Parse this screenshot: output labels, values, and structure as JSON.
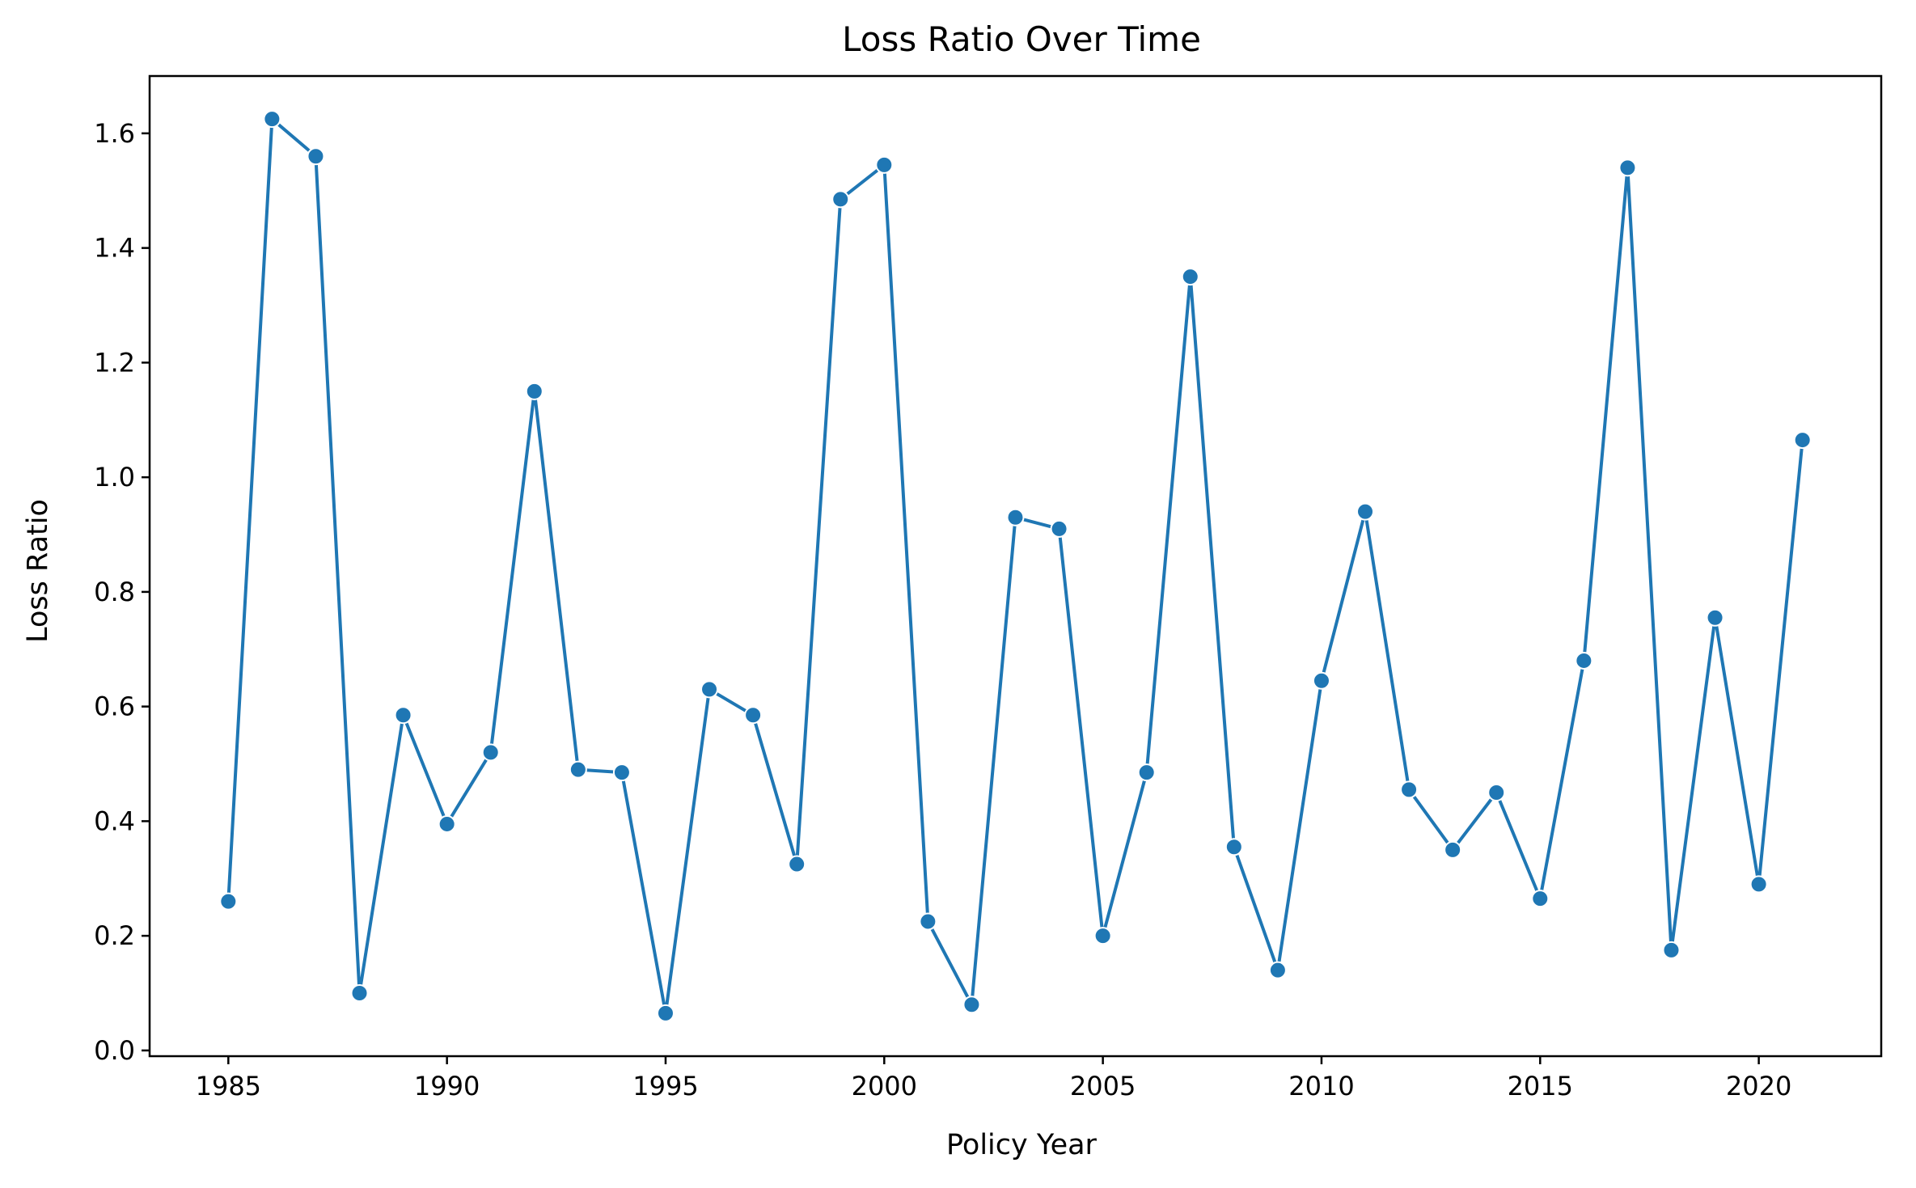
{
  "chart_data": {
    "type": "line",
    "title": "Loss Ratio Over Time",
    "xlabel": "Policy Year",
    "ylabel": "Loss Ratio",
    "xlim": [
      1983.2,
      2022.8
    ],
    "ylim": [
      -0.01,
      1.7
    ],
    "xticks": [
      1985,
      1990,
      1995,
      2000,
      2005,
      2010,
      2015,
      2020
    ],
    "yticks": [
      "0.0",
      "0.2",
      "0.4",
      "0.6",
      "0.8",
      "1.0",
      "1.2",
      "1.4",
      "1.6"
    ],
    "grid": false,
    "color": "#1f77b4",
    "series": [
      {
        "x": [
          1985,
          1986,
          1987,
          1988,
          1989,
          1990,
          1991,
          1992,
          1993,
          1994,
          1995,
          1996,
          1997,
          1998,
          1999,
          2000,
          2001,
          2002,
          2003,
          2004,
          2005,
          2006,
          2007,
          2008,
          2009,
          2010,
          2011,
          2012,
          2013,
          2014,
          2015,
          2016,
          2017,
          2018,
          2019,
          2020,
          2021
        ],
        "values": [
          0.26,
          1.625,
          1.56,
          0.1,
          0.585,
          0.395,
          0.52,
          1.15,
          0.49,
          0.485,
          0.065,
          0.63,
          0.585,
          0.325,
          1.485,
          1.545,
          0.225,
          0.08,
          0.93,
          0.91,
          0.2,
          0.485,
          1.35,
          0.355,
          0.14,
          0.645,
          0.94,
          0.455,
          0.35,
          0.45,
          0.265,
          0.68,
          1.54,
          0.175,
          0.755,
          0.29,
          1.065
        ]
      }
    ]
  }
}
